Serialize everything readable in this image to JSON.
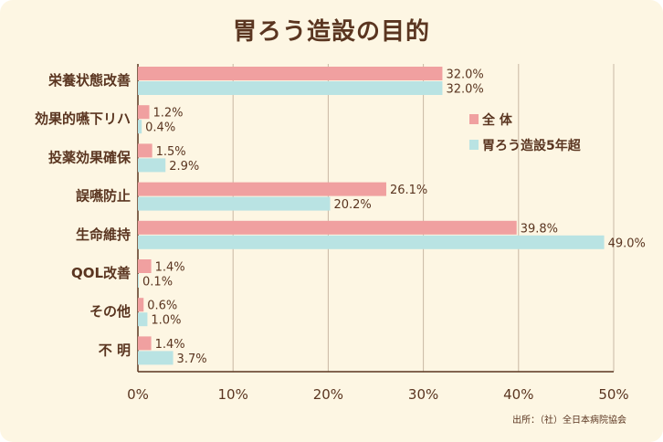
{
  "colors": {
    "background": "#fdf6e3",
    "text": "#5a3520",
    "series_all": "#f0a0a0",
    "series_5yr": "#b9e3e3",
    "grid": "#c9b8a4"
  },
  "source": "出所：（社）全日本病院協会",
  "chart_data": {
    "type": "bar",
    "orientation": "horizontal",
    "title": "胃ろう造設の目的",
    "categories": [
      "栄養状態改善",
      "効果的嚥下リハ",
      "投薬効果確保",
      "誤嚥防止",
      "生命維持",
      "QOL改善",
      "その他",
      "不 明"
    ],
    "series": [
      {
        "name": "全 体",
        "values": [
          32.0,
          1.2,
          1.5,
          26.1,
          39.8,
          1.4,
          0.6,
          1.4
        ]
      },
      {
        "name": "胃ろう造設5年超",
        "values": [
          32.0,
          0.4,
          2.9,
          20.2,
          49.0,
          0.1,
          1.0,
          3.7
        ]
      }
    ],
    "value_labels": [
      [
        "32.0%",
        "1.2%",
        "1.5%",
        "26.1%",
        "39.8%",
        "1.4%",
        "0.6%",
        "1.4%"
      ],
      [
        "32.0%",
        "0.4%",
        "2.9%",
        "20.2%",
        "49.0%",
        "0.1%",
        "1.0%",
        "3.7%"
      ]
    ],
    "xlim": [
      0,
      50
    ],
    "x_ticks": [
      0,
      10,
      20,
      30,
      40,
      50
    ],
    "x_tick_labels": [
      "0%",
      "10%",
      "20%",
      "30%",
      "40%",
      "50%"
    ],
    "xlabel": "",
    "ylabel": "",
    "grid": true,
    "legend_position": "right"
  }
}
